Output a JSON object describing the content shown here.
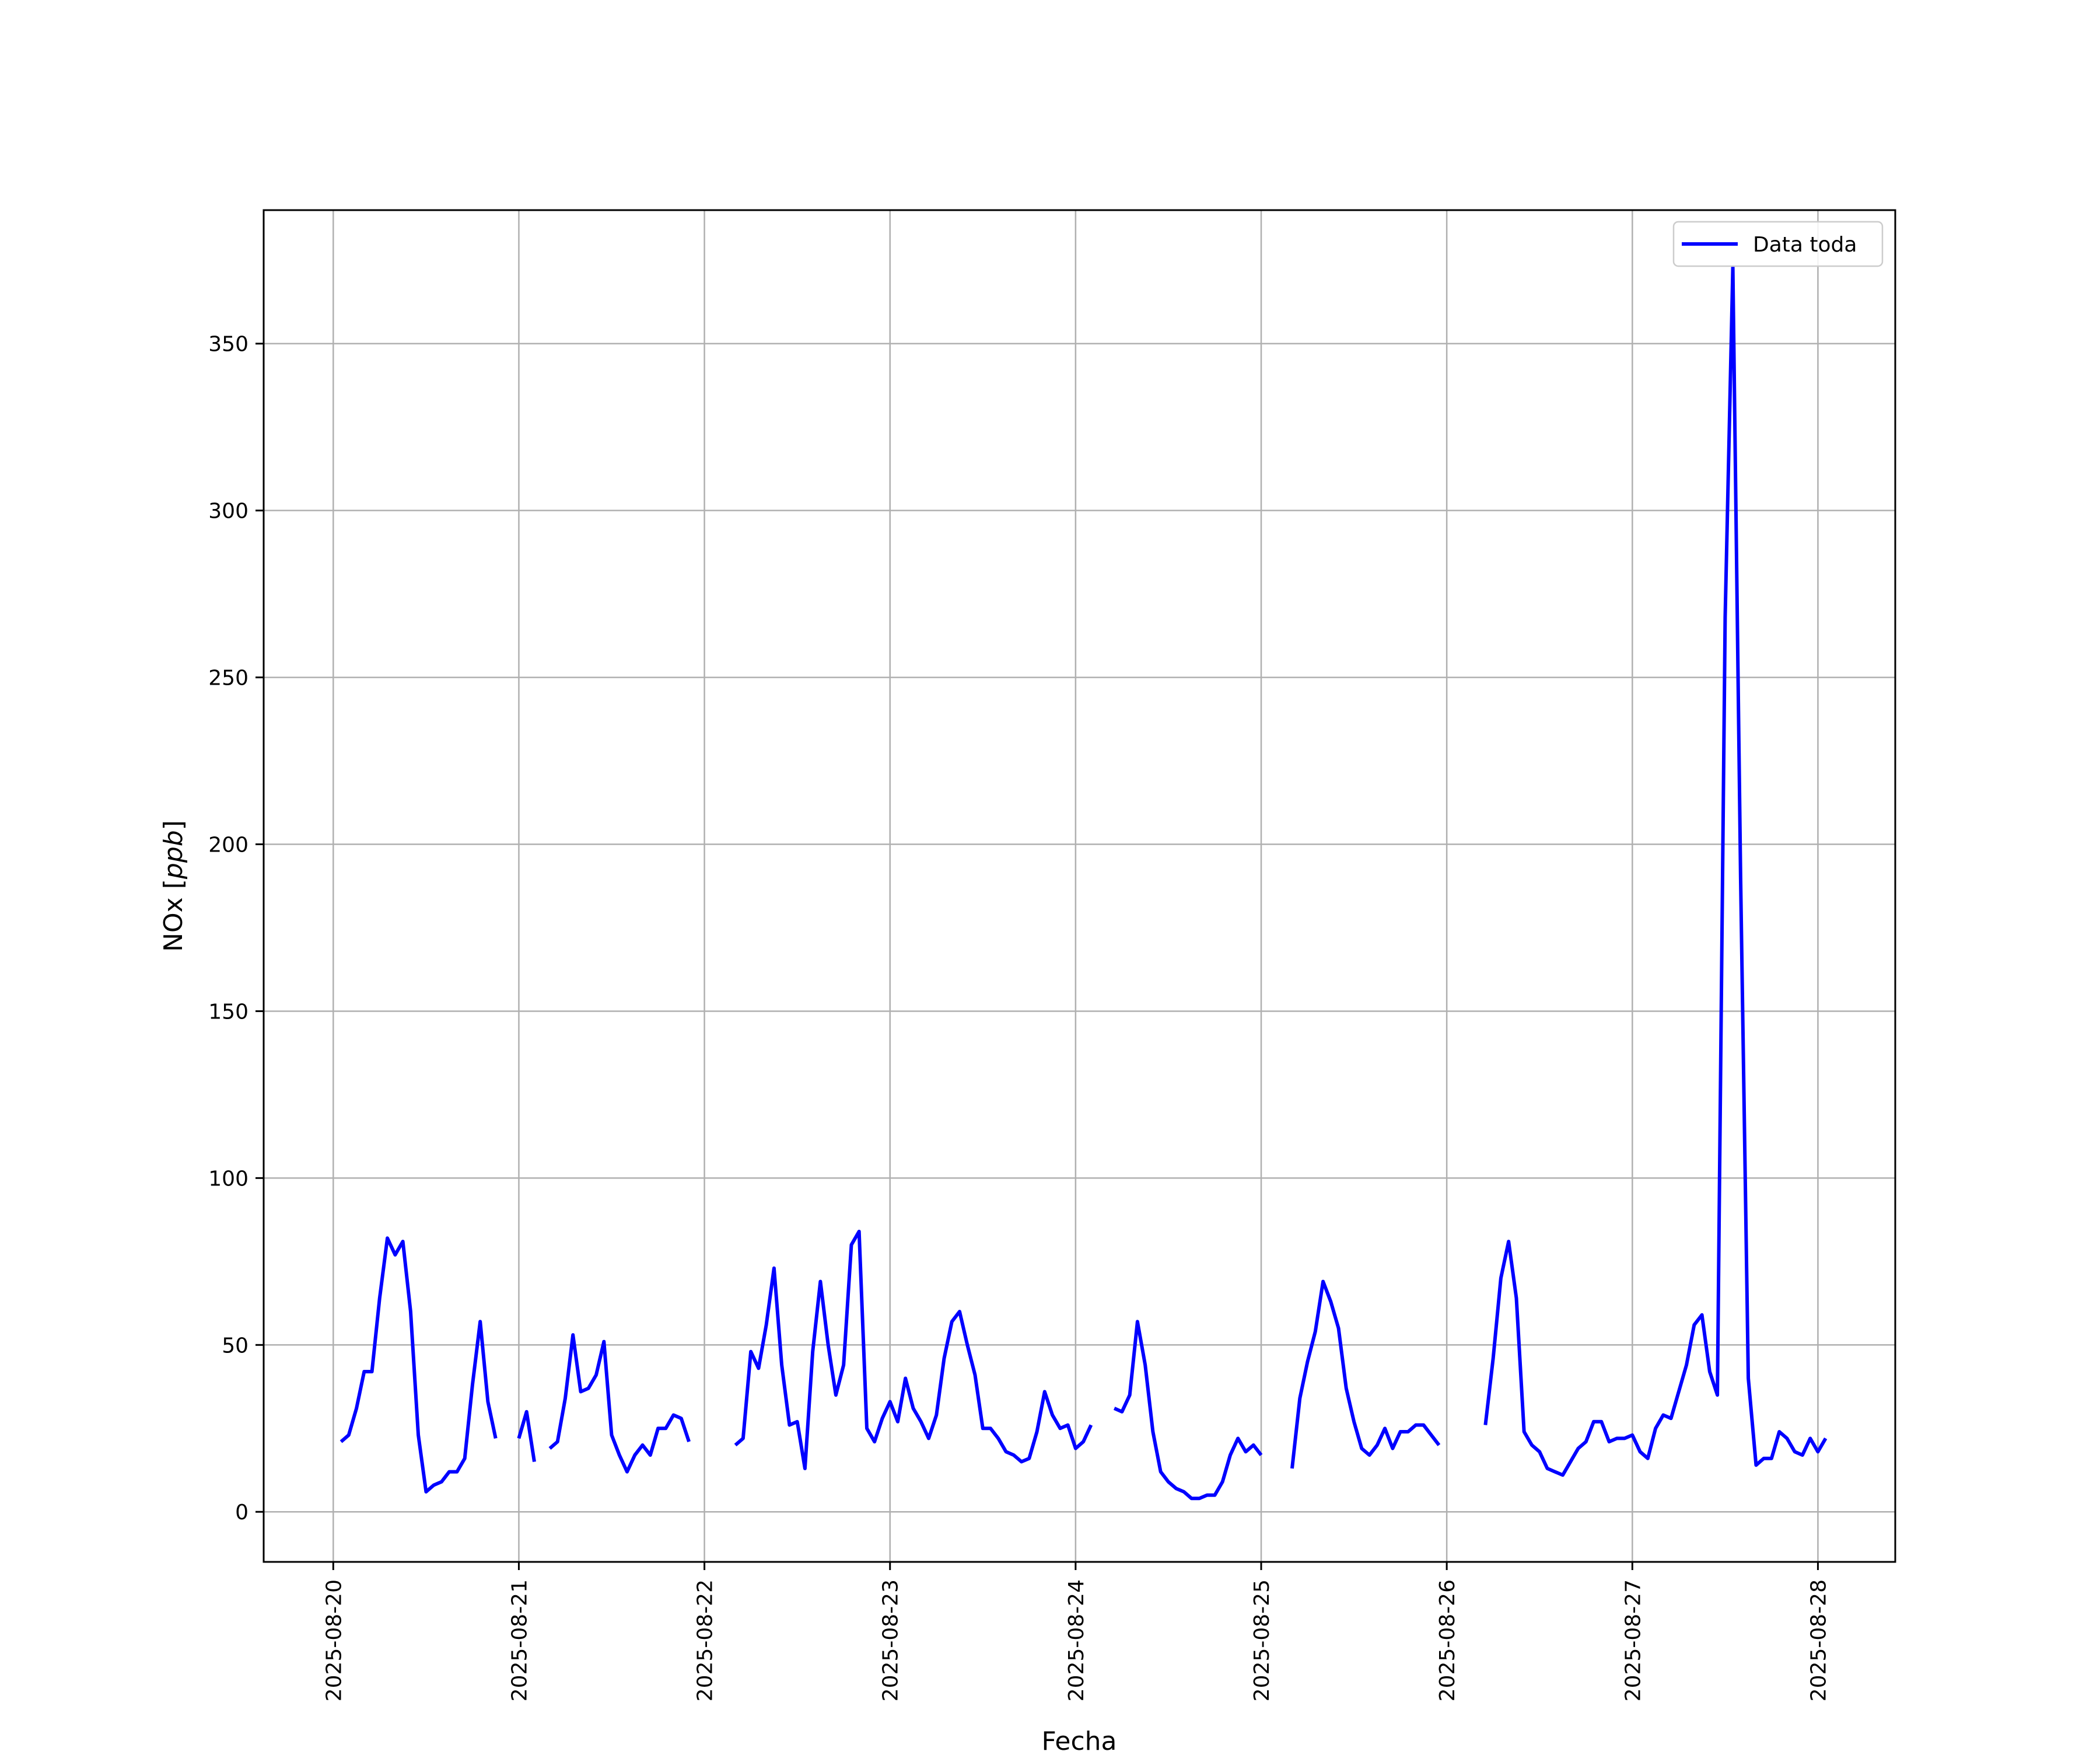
{
  "chart_data": {
    "type": "line",
    "title": "",
    "xlabel": "Fecha",
    "ylabel": "NOx [ppb]",
    "ylabel_main": "NOx [",
    "ylabel_unit": "ppb",
    "ylabel_close": "]",
    "grid": true,
    "legend": "top-right",
    "line_color": "#0000ff",
    "xlim": [
      "2025-08-19 15:00",
      "2025-08-28 10:00"
    ],
    "ylim": [
      -15,
      390
    ],
    "x_ticks": [
      "2025-08-20",
      "2025-08-21",
      "2025-08-22",
      "2025-08-23",
      "2025-08-24",
      "2025-08-25",
      "2025-08-26",
      "2025-08-27",
      "2025-08-28"
    ],
    "y_ticks": [
      0,
      50,
      100,
      150,
      200,
      250,
      300,
      350
    ],
    "series": [
      {
        "name": "Data toda",
        "segments": [
          {
            "start": "2025-08-20 01:00",
            "values": [
              21,
              23,
              31,
              42,
              42,
              64,
              82,
              77,
              81,
              60,
              23,
              6,
              8,
              9,
              12,
              12,
              16,
              38,
              57,
              33,
              22
            ]
          },
          {
            "start": "2025-08-21 00:00",
            "values": [
              22,
              30,
              15
            ]
          },
          {
            "start": "2025-08-21 04:00",
            "values": [
              19,
              21,
              34,
              53,
              36,
              37,
              41,
              51,
              23,
              17,
              12,
              17,
              20,
              17,
              25,
              25,
              29,
              28,
              21
            ]
          },
          {
            "start": "2025-08-22 04:00",
            "values": [
              20,
              22,
              48,
              43,
              56,
              73,
              44,
              26,
              27,
              13,
              48,
              69,
              50,
              35,
              44,
              80,
              84,
              25,
              21,
              28,
              33,
              27,
              40,
              31,
              27,
              22,
              29,
              46,
              57,
              60,
              50,
              41,
              25,
              25,
              22,
              18,
              17,
              15,
              16,
              24,
              36,
              29,
              25,
              26,
              19,
              21,
              26
            ]
          },
          {
            "start": "2025-08-24 05:00",
            "values": [
              31,
              30,
              35,
              57,
              44,
              24,
              12,
              9,
              7,
              6,
              4,
              4,
              5,
              5,
              9,
              17,
              22,
              18,
              20,
              17
            ]
          },
          {
            "start": "2025-08-25 04:00",
            "values": [
              13,
              34,
              45,
              54,
              69,
              63,
              55,
              37,
              27,
              19,
              17,
              20,
              25,
              19,
              24,
              24,
              26,
              26,
              23,
              20
            ]
          },
          {
            "start": "2025-08-26 05:00",
            "values": [
              26,
              46,
              70,
              81,
              64,
              24,
              20,
              18,
              13,
              12,
              11,
              15,
              19,
              21,
              27,
              27,
              21,
              22,
              22,
              23,
              18,
              16,
              25,
              29,
              28,
              36,
              44,
              56,
              59,
              42,
              35,
              268,
              373,
              190,
              40,
              14,
              16,
              16,
              24,
              22,
              18,
              17,
              22,
              18,
              22
            ]
          }
        ]
      }
    ]
  }
}
